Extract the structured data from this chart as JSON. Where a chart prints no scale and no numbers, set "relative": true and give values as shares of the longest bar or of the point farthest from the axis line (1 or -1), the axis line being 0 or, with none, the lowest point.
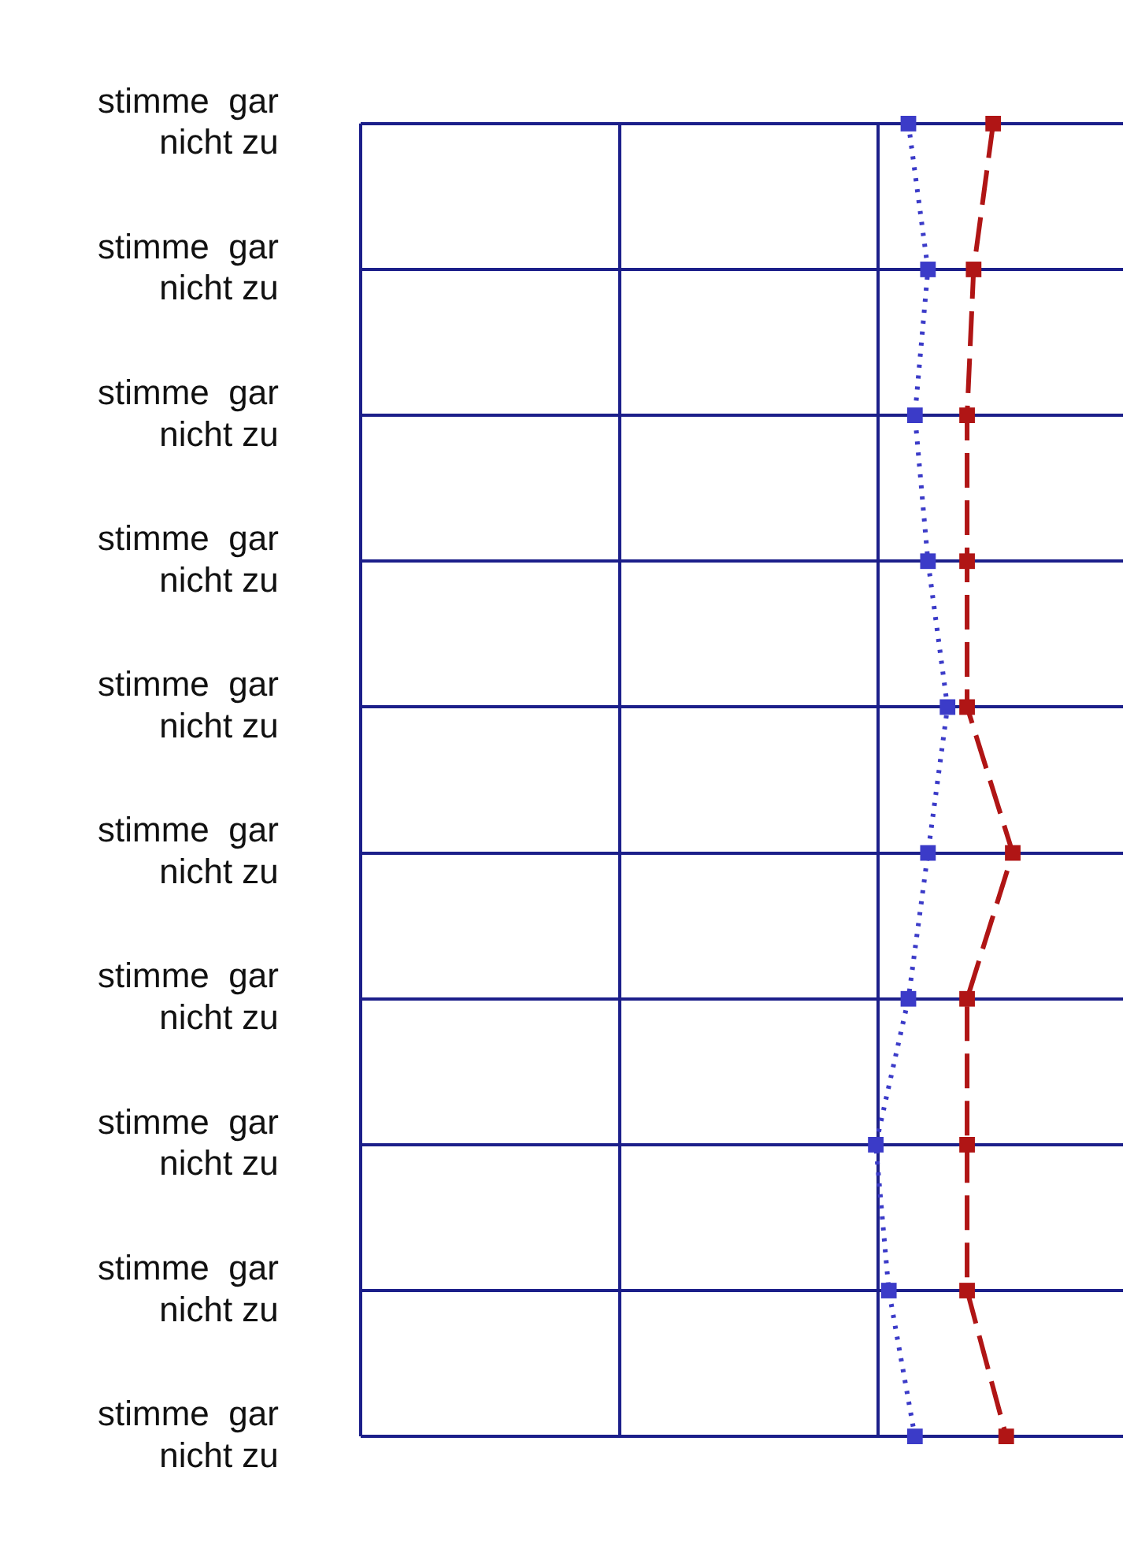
{
  "chart_data": {
    "type": "line",
    "orientation": "horizontal",
    "relative": true,
    "categories": [
      "stimme gar nicht zu",
      "stimme gar nicht zu",
      "stimme gar nicht zu",
      "stimme gar nicht zu",
      "stimme gar nicht zu",
      "stimme gar nicht zu",
      "stimme gar nicht zu",
      "stimme gar nicht zu",
      "stimme gar nicht zu",
      "stimme gar nicht zu"
    ],
    "series": [
      {
        "color": "#b01515",
        "line_style": "dashed",
        "values": [
          0.97,
          0.94,
          0.93,
          0.93,
          0.93,
          1,
          0.93,
          0.93,
          0.93,
          0.99
        ]
      },
      {
        "color": "#3b3bc8",
        "line_style": "dotted",
        "values": [
          0.84,
          0.87,
          0.85,
          0.87,
          0.9,
          0.87,
          0.84,
          0.79,
          0.81,
          0.85
        ]
      }
    ],
    "marker": "square",
    "grid": true,
    "legend": false,
    "tick_labels": "y"
  }
}
